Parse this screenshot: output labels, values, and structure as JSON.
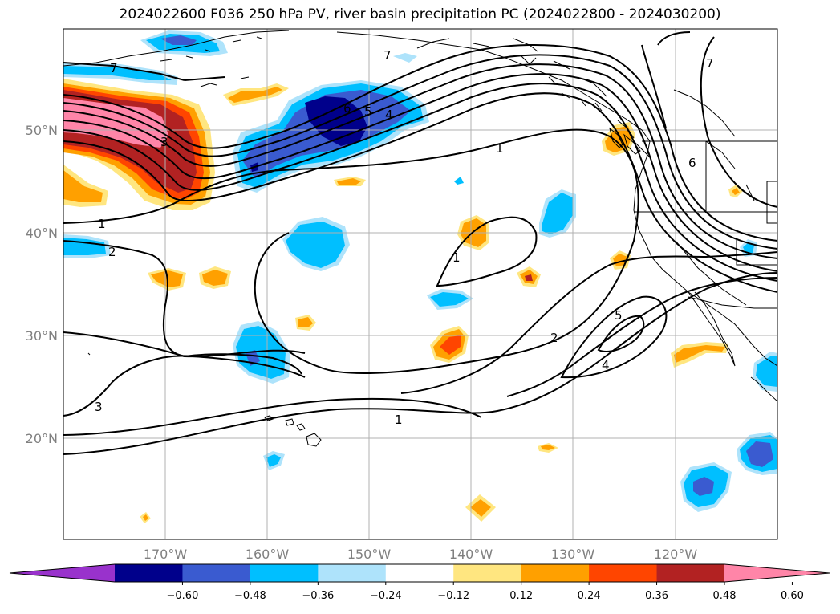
{
  "title": "2024022600 F036 250 hPa PV, river basin precipitation PC (2024022800 - 2024030200)",
  "map": {
    "lat_labels": [
      "50°N",
      "40°N",
      "30°N",
      "20°N"
    ],
    "lon_labels": [
      "170°W",
      "160°W",
      "150°W",
      "140°W",
      "130°W",
      "120°W"
    ],
    "gridlines": true,
    "colors": {
      "land_coast": "#000000",
      "grid": "#b0b0b0",
      "pv_contour": "#000000"
    }
  },
  "colorbar": {
    "tick_labels": [
      "−0.60",
      "−0.48",
      "−0.36",
      "−0.24",
      "−0.12",
      "0.12",
      "0.24",
      "0.36",
      "0.48",
      "0.60"
    ],
    "colors": [
      "#9932cc",
      "#00008b",
      "#3a5bd0",
      "#00bfff",
      "#aee3fb",
      "#ffffff",
      "#ffe680",
      "#ffa000",
      "#ff4500",
      "#b22222",
      "#ff85a8"
    ],
    "extend": "both"
  },
  "contour_labels": [
    "7",
    "7",
    "6",
    "5",
    "4",
    "3",
    "1",
    "2",
    "1",
    "1",
    "1",
    "2",
    "5",
    "4",
    "3",
    "7",
    "6"
  ]
}
